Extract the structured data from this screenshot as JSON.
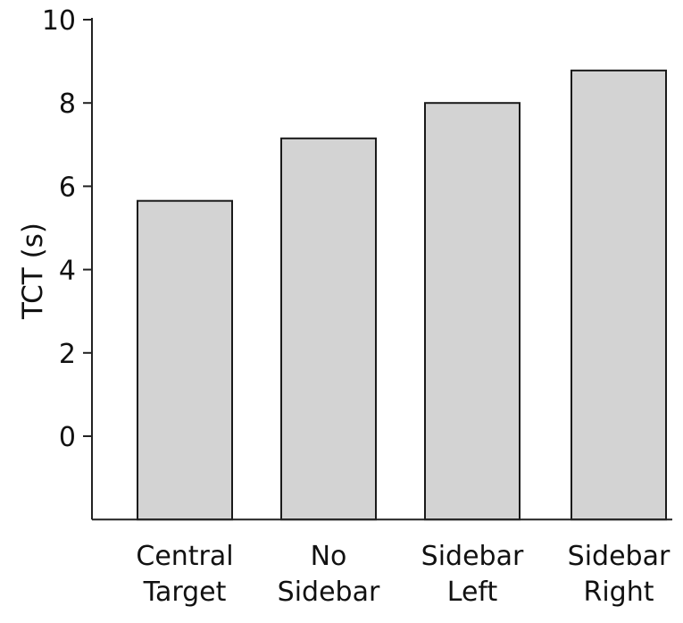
{
  "chart_data": {
    "type": "bar",
    "title": "",
    "xlabel": "",
    "ylabel": "TCT (s)",
    "ylim": [
      -2,
      10
    ],
    "yticks": [
      0,
      2,
      4,
      6,
      8,
      10
    ],
    "grid": false,
    "categories": [
      "Central Target",
      "No Sidebar",
      "Sidebar Left",
      "Sidebar Right"
    ],
    "category_lines": [
      [
        "Central",
        "Target"
      ],
      [
        "No",
        "Sidebar"
      ],
      [
        "Sidebar",
        "Left"
      ],
      [
        "Sidebar",
        "Right"
      ]
    ],
    "values": [
      5.65,
      7.15,
      8.0,
      8.78
    ],
    "bar_color": "#d3d3d3",
    "bar_edge_color": "#1a1a1a"
  }
}
